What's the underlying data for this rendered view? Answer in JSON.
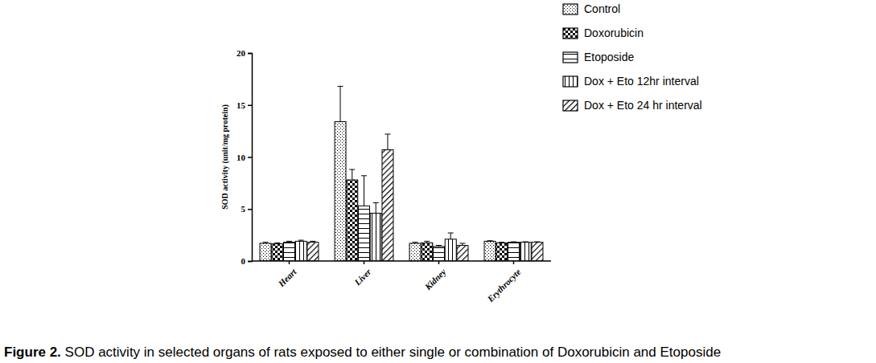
{
  "chart_data": {
    "type": "bar",
    "title": "Figure 2. SOD activity in selected organs of rats exposed to either single or combination of Doxorubicin and Etoposide",
    "y_label": "SOD activity (unit/mg protein)",
    "categories": [
      "Heart",
      "Liver",
      "Kidney",
      "Erythrocyte"
    ],
    "series": [
      {
        "name": "Control",
        "color": "#000000",
        "values": [
          1.7,
          13.4,
          1.7,
          1.9
        ],
        "errors": [
          0.1,
          3.4,
          0.1,
          0.05
        ]
      },
      {
        "name": "Doxorubicin",
        "color": "#000000",
        "values": [
          1.65,
          7.8,
          1.75,
          1.75
        ],
        "errors": [
          0.1,
          1.0,
          0.15,
          0.05
        ]
      },
      {
        "name": "Etoposide",
        "color": "#000000",
        "values": [
          1.8,
          5.3,
          1.4,
          1.8
        ],
        "errors": [
          0.1,
          2.9,
          0.1,
          0.05
        ]
      },
      {
        "name": "Dox + Eto 12hr interval",
        "color": "#000000",
        "values": [
          1.9,
          4.6,
          2.1,
          1.8
        ],
        "errors": [
          0.1,
          1.0,
          0.6,
          0.05
        ]
      },
      {
        "name": "Dox + Eto 24 hr interval",
        "color": "#000000",
        "values": [
          1.8,
          10.7,
          1.5,
          1.8
        ],
        "errors": [
          0.1,
          1.5,
          0.2,
          0.05
        ]
      }
    ],
    "ylim": [
      0,
      20
    ],
    "yticks": [
      0,
      5,
      10,
      15,
      20
    ],
    "legend": "top-right",
    "grid": false
  }
}
